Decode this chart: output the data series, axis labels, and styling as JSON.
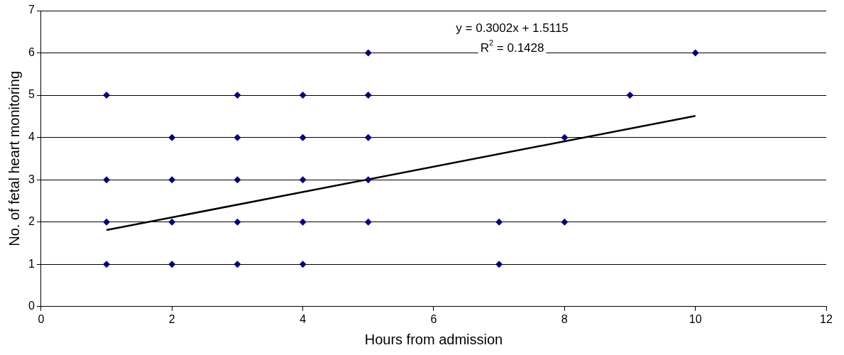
{
  "chart_data": {
    "type": "scatter",
    "xlabel": "Hours from admission",
    "ylabel": "No. of fetal heart monitoring",
    "xlim": [
      0,
      12
    ],
    "xticks": [
      0,
      2,
      4,
      6,
      8,
      10,
      12
    ],
    "ylim": [
      0,
      7
    ],
    "yticks": [
      0,
      1,
      2,
      3,
      4,
      5,
      6,
      7
    ],
    "grid": "y",
    "marker": "diamond",
    "series": [
      {
        "type": "scatter",
        "color": "#000080",
        "x": [
          1,
          1,
          1,
          1,
          2,
          2,
          2,
          2,
          3,
          3,
          3,
          3,
          3,
          4,
          4,
          4,
          4,
          4,
          5,
          5,
          5,
          5,
          5,
          7,
          7,
          8,
          8,
          9,
          10
        ],
        "values": [
          1,
          2,
          3,
          5,
          1,
          2,
          3,
          4,
          1,
          2,
          3,
          4,
          5,
          1,
          2,
          3,
          4,
          5,
          2,
          3,
          4,
          5,
          6,
          1,
          2,
          2,
          4,
          5,
          6
        ]
      },
      {
        "type": "line",
        "color": "#000000",
        "marker": "none",
        "line_style": "solid",
        "x": [
          1,
          10
        ],
        "values": [
          1.81,
          4.51
        ]
      }
    ],
    "annotations": [
      "y = 0.3002x + 1.5115",
      "R$^{2}$ = 0.1428"
    ]
  }
}
